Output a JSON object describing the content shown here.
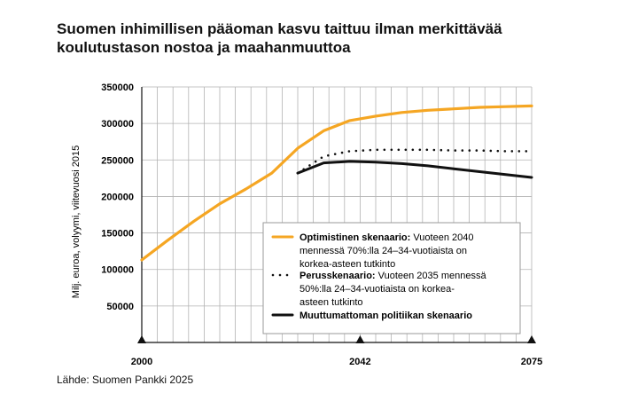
{
  "chart_data": {
    "type": "line",
    "title_lines": [
      "Suomen inhimillisen pääoman kasvu taittuu ilman merkittävää",
      "koulutustason nostoa ja maahanmuuttoa"
    ],
    "ylabel": "Milj. euroa, volyymi, viitevuosi 2015",
    "source": "Lähde: Suomen Pankki 2025",
    "x_ticks": [
      2000,
      2042,
      2075
    ],
    "xlim": [
      2000,
      2075
    ],
    "y_ticks": [
      50000,
      100000,
      150000,
      200000,
      250000,
      300000,
      350000
    ],
    "y_tick_labels": [
      "50000",
      "100000",
      "150000",
      "200000",
      "250000",
      "300000",
      "350000"
    ],
    "ylim": [
      0,
      350000
    ],
    "grid": true,
    "legend_position": "lower-right",
    "series": [
      {
        "key": "optimistic",
        "legend_bold": "Optimistinen skenaario:",
        "legend_rest": " Vuoteen 2040 mennessä 70%:lla 24–34-vuotiaista on korkea-asteen tutkinto",
        "legend_lines": [
          [
            {
              "t": "Optimistinen skenaario:",
              "b": true
            },
            {
              "t": " Vuoteen 2040",
              "b": false
            }
          ],
          [
            {
              "t": "mennessä 70%:lla 24–34-vuotiaista on",
              "b": false
            }
          ],
          [
            {
              "t": "korkea-asteen tutkinto",
              "b": false
            }
          ]
        ],
        "color": "#f5a623",
        "style": "solid",
        "x": [
          2000,
          2005,
          2010,
          2015,
          2020,
          2025,
          2030,
          2035,
          2040,
          2045,
          2050,
          2055,
          2060,
          2065,
          2070,
          2075
        ],
        "y": [
          113000,
          140000,
          166000,
          190000,
          210000,
          232000,
          266000,
          290000,
          304000,
          310000,
          315000,
          318000,
          320000,
          322000,
          323000,
          324000
        ]
      },
      {
        "key": "base",
        "legend_bold": "Perusskenaario:",
        "legend_rest": " Vuoteen 2035 mennessä 50%:lla 24–34-vuotiaista on korkea-asteen tutkinto",
        "legend_lines": [
          [
            {
              "t": "Perusskenaario:",
              "b": true
            },
            {
              "t": " Vuoteen 2035 mennessä",
              "b": false
            }
          ],
          [
            {
              "t": "50%:lla 24–34-vuotiaista on korkea-",
              "b": false
            }
          ],
          [
            {
              "t": "asteen tutkinto",
              "b": false
            }
          ]
        ],
        "color": "#111111",
        "style": "dotted",
        "x": [
          2030,
          2035,
          2040,
          2045,
          2050,
          2055,
          2060,
          2065,
          2070,
          2075
        ],
        "y": [
          232000,
          255000,
          262000,
          264000,
          264000,
          264000,
          263000,
          263000,
          262000,
          262000
        ]
      },
      {
        "key": "current",
        "legend_bold": "Muuttumattoman politiikan skenaario",
        "legend_rest": "",
        "legend_lines": [
          [
            {
              "t": "Muuttumattoman politiikan skenaario",
              "b": true
            }
          ]
        ],
        "color": "#111111",
        "style": "solid",
        "x": [
          2030,
          2035,
          2040,
          2045,
          2050,
          2055,
          2060,
          2065,
          2070,
          2075
        ],
        "y": [
          232000,
          246000,
          248000,
          247000,
          245000,
          242000,
          238000,
          234000,
          230000,
          226000
        ]
      }
    ]
  }
}
